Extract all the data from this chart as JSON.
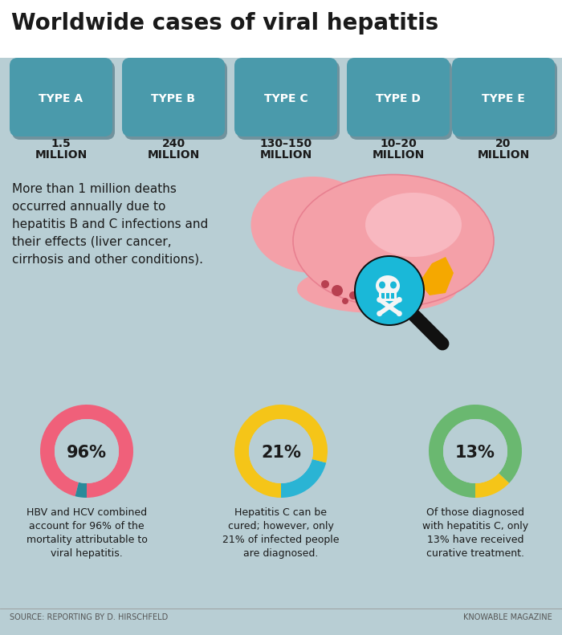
{
  "title": "Worldwide cases of viral hepatitis",
  "bg_color_top": "#ffffff",
  "bg_color_main": "#b8ced4",
  "types": [
    "TYPE A",
    "TYPE B",
    "TYPE C",
    "TYPE D",
    "TYPE E"
  ],
  "amounts_line1": [
    "1.5",
    "240",
    "130–150",
    "10–20",
    "20"
  ],
  "amounts_line2": [
    "MILLION",
    "MILLION",
    "MILLION",
    "MILLION",
    "MILLION"
  ],
  "pill_color": "#4a9aab",
  "pill_shadow": "#1a4a5a",
  "death_text_lines": [
    "More than 1 million deaths",
    "occurred annually due to",
    "hepatitis B and C infections and",
    "their effects (liver cancer,",
    "cirrhosis and other conditions)."
  ],
  "donuts": [
    {
      "pct": 96,
      "label": "96%",
      "main_color": "#f0607a",
      "other_color": "#2a8a9a",
      "text_lines": [
        "HBV and HCV combined",
        "account for 96% of the",
        "mortality attributable to",
        "viral hepatitis."
      ]
    },
    {
      "pct": 21,
      "label": "21%",
      "main_color": "#2ab4d4",
      "other_color": "#f5c518",
      "text_lines": [
        "Hepatitis C can be",
        "cured; however, only",
        "21% of infected people",
        "are diagnosed."
      ]
    },
    {
      "pct": 13,
      "label": "13%",
      "main_color": "#f5c518",
      "other_color": "#6ab870",
      "text_lines": [
        "Of those diagnosed",
        "with hepatitis C, only",
        "13% have received",
        "curative treatment."
      ]
    }
  ],
  "source_left": "SOURCE: REPORTING BY D. HIRSCHFELD",
  "source_right": "KNOWABLE MAGAZINE",
  "text_color": "#1a1a1a",
  "footer_color": "#555555"
}
